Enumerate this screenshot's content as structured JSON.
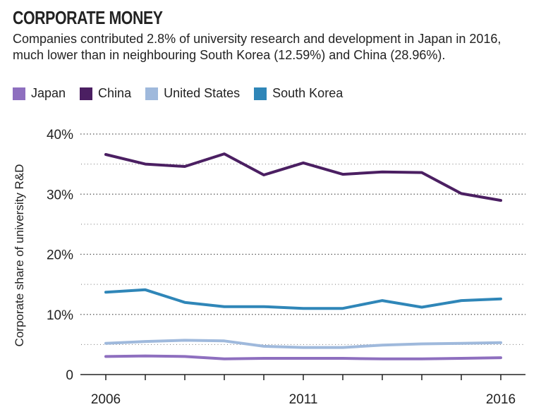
{
  "header": {
    "title": "CORPORATE MONEY",
    "subtitle": "Companies contributed 2.8% of university research and development in Japan in 2016, much lower than in neighbouring South Korea (12.59%) and China (28.96%)."
  },
  "legend": [
    {
      "label": "Japan",
      "color": "#8e6fbf"
    },
    {
      "label": "China",
      "color": "#4b1f62"
    },
    {
      "label": "United States",
      "color": "#9fb9dc"
    },
    {
      "label": "South Korea",
      "color": "#2f86b8"
    }
  ],
  "chart_data": {
    "type": "line",
    "title": "CORPORATE MONEY",
    "ylabel": "Corporate share of university R&D",
    "xlabel": "",
    "x": [
      2006,
      2007,
      2008,
      2009,
      2010,
      2011,
      2012,
      2013,
      2014,
      2015,
      2016
    ],
    "ylim": [
      0,
      40
    ],
    "y_ticks": [
      0,
      10,
      20,
      30,
      40
    ],
    "y_tick_labels": [
      "0",
      "10%",
      "20%",
      "30%",
      "40%"
    ],
    "x_ticks": [
      2006,
      2011,
      2016
    ],
    "x_tick_labels": [
      "2006",
      "2011",
      "2016"
    ],
    "grid": "horizontal dotted",
    "legend_position": "top-left",
    "series": [
      {
        "name": "Japan",
        "color": "#8e6fbf",
        "values": [
          3.0,
          3.1,
          3.0,
          2.6,
          2.7,
          2.7,
          2.7,
          2.6,
          2.6,
          2.7,
          2.8
        ]
      },
      {
        "name": "China",
        "color": "#4b1f62",
        "values": [
          36.6,
          35.0,
          34.6,
          36.7,
          33.2,
          35.2,
          33.3,
          33.7,
          33.6,
          30.1,
          28.96
        ]
      },
      {
        "name": "United States",
        "color": "#9fb9dc",
        "values": [
          5.2,
          5.5,
          5.7,
          5.6,
          4.7,
          4.5,
          4.5,
          4.9,
          5.1,
          5.2,
          5.3
        ]
      },
      {
        "name": "South Korea",
        "color": "#2f86b8",
        "values": [
          13.7,
          14.1,
          12.0,
          11.3,
          11.3,
          11.0,
          11.0,
          12.3,
          11.2,
          12.3,
          12.59
        ]
      }
    ]
  }
}
